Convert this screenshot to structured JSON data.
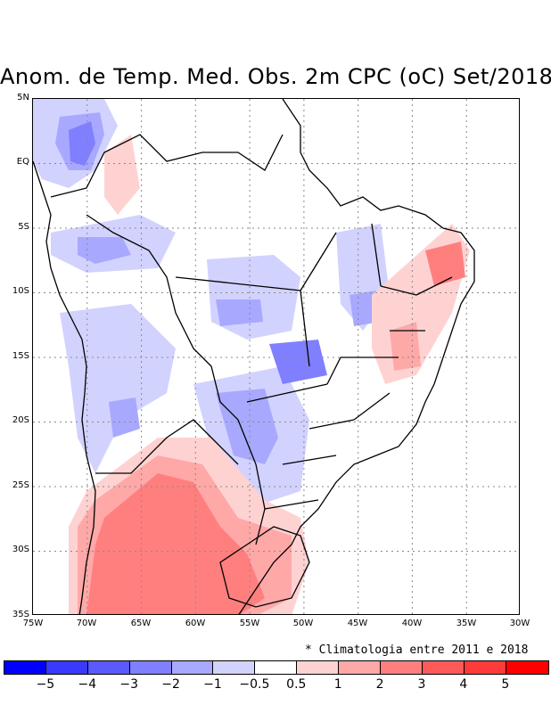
{
  "title": "Anom. de Temp. Med. Obs. 2m CPC (oC) Set/2018",
  "note": "* Climatologia entre 2011 e 2018",
  "lat_labels": [
    "5N",
    "EQ",
    "5S",
    "10S",
    "15S",
    "20S",
    "25S",
    "30S",
    "35S"
  ],
  "lon_labels": [
    "75W",
    "70W",
    "65W",
    "60W",
    "55W",
    "50W",
    "45W",
    "40W",
    "35W",
    "30W"
  ],
  "colorbar": {
    "colors": [
      "#0000ff",
      "#3a3aff",
      "#5a5aff",
      "#7f7fff",
      "#a8a8ff",
      "#d2d2ff",
      "#ffffff",
      "#ffd2d2",
      "#ffa8a8",
      "#ff7f7f",
      "#ff5a5a",
      "#ff3a3a",
      "#ff0000"
    ],
    "labels": [
      "−5",
      "−4",
      "−3",
      "−2",
      "−1",
      "−0.5",
      "0.5",
      "1",
      "2",
      "3",
      "4",
      "5"
    ]
  },
  "icons": {
    "map": "temperature-anomaly-map",
    "note": "asterisk"
  }
}
